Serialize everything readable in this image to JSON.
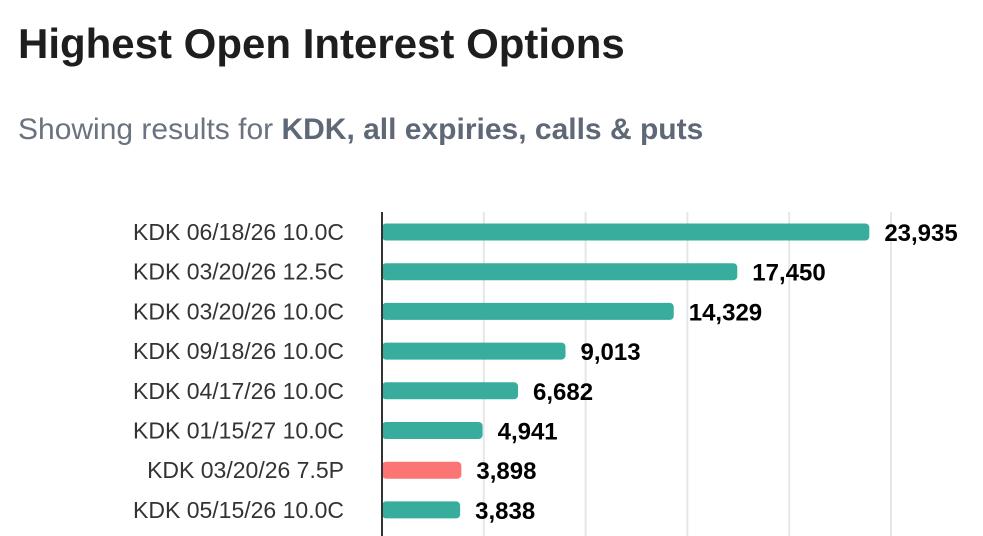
{
  "header": {
    "title": "Highest Open Interest Options",
    "subtitle_prefix": "Showing results for ",
    "subtitle_bold": "KDK, all expiries, calls & puts"
  },
  "colors": {
    "call": "#38ad9d",
    "put": "#fc7575",
    "grid": "#e6e6e6",
    "axis": "#333333"
  },
  "chart_data": {
    "type": "bar",
    "orientation": "horizontal",
    "categories": [
      "KDK 06/18/26 10.0C",
      "KDK 03/20/26 12.5C",
      "KDK 03/20/26 10.0C",
      "KDK 09/18/26 10.0C",
      "KDK 04/17/26 10.0C",
      "KDK 01/15/27 10.0C",
      "KDK 03/20/26 7.5P",
      "KDK 05/15/26 10.0C"
    ],
    "values": [
      23935,
      17450,
      14329,
      9013,
      6682,
      4941,
      3898,
      3838
    ],
    "value_labels": [
      "23,935",
      "17,450",
      "14,329",
      "9,013",
      "6,682",
      "4,941",
      "3,898",
      "3,838"
    ],
    "option_type": [
      "call",
      "call",
      "call",
      "call",
      "call",
      "call",
      "put",
      "call"
    ],
    "xlim": [
      0,
      25000
    ],
    "x_gridlines": [
      5000,
      10000,
      15000,
      20000,
      25000
    ],
    "grid": true,
    "legend": "none"
  }
}
